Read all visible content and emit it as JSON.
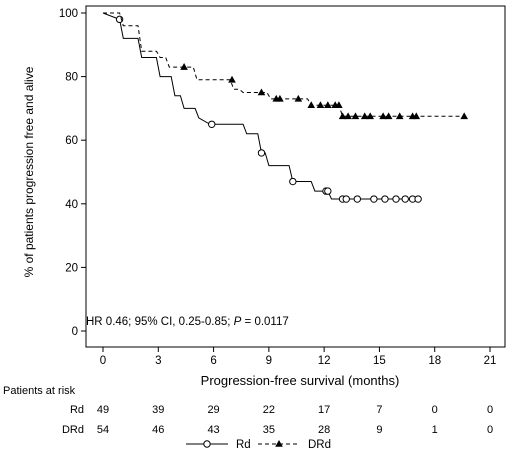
{
  "chart_data": {
    "type": "line",
    "title": "",
    "xlabel": "Progression-free survival (months)",
    "ylabel": "% of patients progression free and alive",
    "xlim": [
      0,
      21
    ],
    "ylim": [
      0,
      100
    ],
    "xticks": [
      0,
      3,
      6,
      9,
      12,
      15,
      18,
      21
    ],
    "yticks": [
      0,
      20,
      40,
      60,
      80,
      100
    ],
    "grid": false,
    "legend_position": "bottom-center",
    "annotation": "HR 0.46; 95% CI, 0.25-0.85; P = 0.0117",
    "series": [
      {
        "name": "Rd",
        "line_style": "solid",
        "marker": "open-circle",
        "step_points": [
          [
            0,
            100
          ],
          [
            0.9,
            98
          ],
          [
            1.1,
            92
          ],
          [
            1.9,
            92
          ],
          [
            2.1,
            86
          ],
          [
            2.9,
            86
          ],
          [
            3.1,
            80
          ],
          [
            3.7,
            80
          ],
          [
            3.9,
            74
          ],
          [
            4.2,
            74
          ],
          [
            4.4,
            70
          ],
          [
            5,
            70
          ],
          [
            5.2,
            67
          ],
          [
            5.8,
            65
          ],
          [
            7.6,
            65
          ],
          [
            7.8,
            62
          ],
          [
            8.4,
            62
          ],
          [
            8.6,
            56
          ],
          [
            8.8,
            56
          ],
          [
            9,
            52
          ],
          [
            10.1,
            52
          ],
          [
            10.3,
            47
          ],
          [
            11.3,
            47
          ],
          [
            11.5,
            44
          ],
          [
            12.2,
            44
          ],
          [
            12.4,
            41.5
          ],
          [
            17.2,
            41.5
          ]
        ],
        "censored": [
          [
            0.9,
            98
          ],
          [
            5.9,
            65
          ],
          [
            8.6,
            56
          ],
          [
            10.3,
            47
          ],
          [
            12.1,
            44
          ],
          [
            12.2,
            44
          ],
          [
            13,
            41.5
          ],
          [
            13.2,
            41.5
          ],
          [
            13.8,
            41.5
          ],
          [
            14.7,
            41.5
          ],
          [
            15.3,
            41.5
          ],
          [
            15.9,
            41.5
          ],
          [
            16.4,
            41.5
          ],
          [
            16.8,
            41.5
          ],
          [
            17.1,
            41.5
          ]
        ]
      },
      {
        "name": "DRd",
        "line_style": "dashed",
        "marker": "filled-triangle",
        "step_points": [
          [
            0,
            100
          ],
          [
            0.9,
            100
          ],
          [
            1.1,
            96
          ],
          [
            1.9,
            96
          ],
          [
            2.1,
            88
          ],
          [
            2.9,
            88
          ],
          [
            3.1,
            86
          ],
          [
            3.4,
            86
          ],
          [
            3.6,
            83
          ],
          [
            4.9,
            83
          ],
          [
            5.1,
            79
          ],
          [
            6.9,
            79
          ],
          [
            7.1,
            76
          ],
          [
            7.4,
            76
          ],
          [
            7.6,
            75
          ],
          [
            8.9,
            75
          ],
          [
            9.1,
            73
          ],
          [
            11.1,
            73
          ],
          [
            11.3,
            71
          ],
          [
            12.8,
            71
          ],
          [
            13,
            67.5
          ],
          [
            19.7,
            67.5
          ]
        ],
        "censored": [
          [
            4.4,
            83
          ],
          [
            7,
            79
          ],
          [
            8.6,
            75
          ],
          [
            9.4,
            73
          ],
          [
            9.6,
            73
          ],
          [
            10.6,
            73
          ],
          [
            11.3,
            71
          ],
          [
            11.8,
            71
          ],
          [
            12.2,
            71
          ],
          [
            12.6,
            71
          ],
          [
            12.8,
            71
          ],
          [
            13,
            67.5
          ],
          [
            13.3,
            67.5
          ],
          [
            13.7,
            67.5
          ],
          [
            14.2,
            67.5
          ],
          [
            14.5,
            67.5
          ],
          [
            15.2,
            67.5
          ],
          [
            15.5,
            67.5
          ],
          [
            16.1,
            67.5
          ],
          [
            16.8,
            67.5
          ],
          [
            17,
            67.5
          ],
          [
            19.6,
            67.5
          ]
        ]
      }
    ],
    "risk_table": {
      "title": "Patients at risk",
      "rows": [
        {
          "label": "Rd",
          "values": [
            "49",
            "39",
            "29",
            "22",
            "17",
            "7",
            "0",
            "0"
          ]
        },
        {
          "label": "DRd",
          "values": [
            "54",
            "46",
            "43",
            "35",
            "28",
            "9",
            "1",
            "0"
          ]
        }
      ]
    }
  }
}
